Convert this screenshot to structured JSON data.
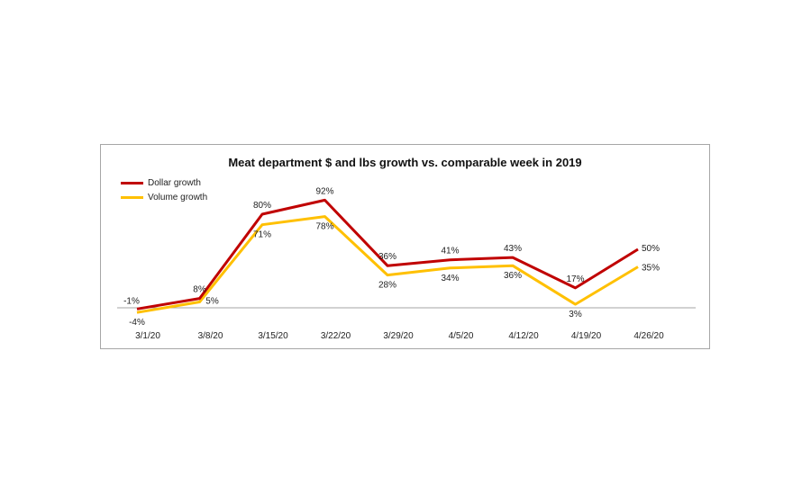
{
  "chart_data": {
    "type": "line",
    "title": "Meat department $ and lbs growth vs. comparable week in 2019",
    "xlabel": "",
    "ylabel": "",
    "categories": [
      "3/1/20",
      "3/8/20",
      "3/15/20",
      "3/22/20",
      "3/29/20",
      "4/5/20",
      "4/12/20",
      "4/19/20",
      "4/26/20"
    ],
    "series": [
      {
        "name": "Dollar growth",
        "color": "#c00000",
        "values": [
          -1,
          8,
          80,
          92,
          36,
          41,
          43,
          17,
          50
        ],
        "labels": [
          "-1%",
          "8%",
          "80%",
          "92%",
          "36%",
          "41%",
          "43%",
          "17%",
          "50%"
        ]
      },
      {
        "name": "Volume growth",
        "color": "#ffc000",
        "values": [
          -4,
          5,
          71,
          78,
          28,
          34,
          36,
          3,
          35
        ],
        "labels": [
          "-4%",
          "5%",
          "71%",
          "78%",
          "28%",
          "34%",
          "36%",
          "3%",
          "35%"
        ]
      }
    ],
    "ylim": [
      -10,
      100
    ],
    "grid": false,
    "legend_position": "top-left"
  }
}
